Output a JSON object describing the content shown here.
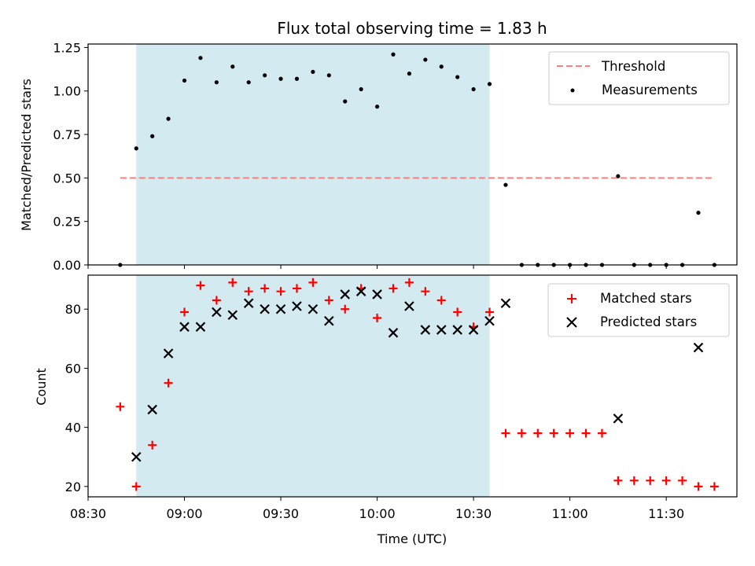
{
  "chart_data": {
    "title": "Flux total observing time = 1.83 h",
    "xlabel": "Time (UTC)",
    "x_ticks": [
      "08:30",
      "09:00",
      "09:30",
      "10:00",
      "10:30",
      "11:00",
      "11:30"
    ],
    "x_range": [
      "08:30",
      "11:52"
    ],
    "observing_window": {
      "start": "08:45",
      "end": "10:35",
      "color": "#d3eaf1"
    },
    "top": {
      "type": "scatter",
      "ylabel": "Matched/Predicted stars",
      "ylim": [
        0,
        1.27
      ],
      "y_ticks": [
        "0.00",
        "0.25",
        "0.50",
        "0.75",
        "1.00",
        "1.25"
      ],
      "legend_position": "top-right",
      "threshold": {
        "name": "Threshold",
        "value": 0.5,
        "x_start": "08:40",
        "x_end": "11:45",
        "color": "#ff7f7f"
      },
      "series": [
        {
          "name": "Measurements",
          "color": "#000000",
          "x": [
            "08:40",
            "08:45",
            "08:50",
            "08:55",
            "09:00",
            "09:05",
            "09:10",
            "09:15",
            "09:20",
            "09:25",
            "09:30",
            "09:35",
            "09:40",
            "09:45",
            "09:50",
            "09:55",
            "10:00",
            "10:05",
            "10:10",
            "10:15",
            "10:20",
            "10:25",
            "10:30",
            "10:35",
            "10:40",
            "10:45",
            "10:50",
            "10:55",
            "11:00",
            "11:05",
            "11:10",
            "11:15",
            "11:20",
            "11:25",
            "11:30",
            "11:35",
            "11:40",
            "11:45"
          ],
          "y": [
            0.0,
            0.67,
            0.74,
            0.84,
            1.06,
            1.19,
            1.05,
            1.14,
            1.05,
            1.09,
            1.07,
            1.07,
            1.11,
            1.09,
            0.94,
            1.01,
            0.91,
            1.21,
            1.1,
            1.18,
            1.14,
            1.08,
            1.01,
            1.04,
            0.46,
            0.0,
            0.0,
            0.0,
            0.0,
            0.0,
            0.0,
            0.51,
            0.0,
            0.0,
            0.0,
            0.0,
            0.3,
            0.0
          ]
        }
      ]
    },
    "bottom": {
      "type": "scatter",
      "ylabel": "Count",
      "ylim": [
        16.5,
        91.5
      ],
      "y_ticks": [
        "20",
        "40",
        "60",
        "80"
      ],
      "legend_position": "top-right",
      "series": [
        {
          "name": "Matched stars",
          "marker": "+",
          "color": "#ff0000",
          "x": [
            "08:40",
            "08:45",
            "08:50",
            "08:55",
            "09:00",
            "09:05",
            "09:10",
            "09:15",
            "09:20",
            "09:25",
            "09:30",
            "09:35",
            "09:40",
            "09:45",
            "09:50",
            "09:55",
            "10:00",
            "10:05",
            "10:10",
            "10:15",
            "10:20",
            "10:25",
            "10:30",
            "10:35",
            "10:40",
            "10:45",
            "10:50",
            "10:55",
            "11:00",
            "11:05",
            "11:10",
            "11:15",
            "11:20",
            "11:25",
            "11:30",
            "11:35",
            "11:40",
            "11:45"
          ],
          "y": [
            47,
            20,
            34,
            55,
            79,
            88,
            83,
            89,
            86,
            87,
            86,
            87,
            89,
            83,
            80,
            87,
            77,
            87,
            89,
            86,
            83,
            79,
            74,
            79,
            38,
            38,
            38,
            38,
            38,
            38,
            38,
            22,
            22,
            22,
            22,
            22,
            20,
            20
          ]
        },
        {
          "name": "Predicted stars",
          "marker": "x",
          "color": "#000000",
          "x": [
            "08:45",
            "08:50",
            "08:55",
            "09:00",
            "09:05",
            "09:10",
            "09:15",
            "09:20",
            "09:25",
            "09:30",
            "09:35",
            "09:40",
            "09:45",
            "09:50",
            "09:55",
            "10:00",
            "10:05",
            "10:10",
            "10:15",
            "10:20",
            "10:25",
            "10:30",
            "10:35",
            "10:40",
            "11:15",
            "11:40"
          ],
          "y": [
            30,
            46,
            65,
            74,
            74,
            79,
            78,
            82,
            80,
            80,
            81,
            80,
            76,
            85,
            86,
            85,
            72,
            81,
            73,
            73,
            73,
            73,
            76,
            82,
            43,
            67
          ]
        }
      ]
    }
  }
}
